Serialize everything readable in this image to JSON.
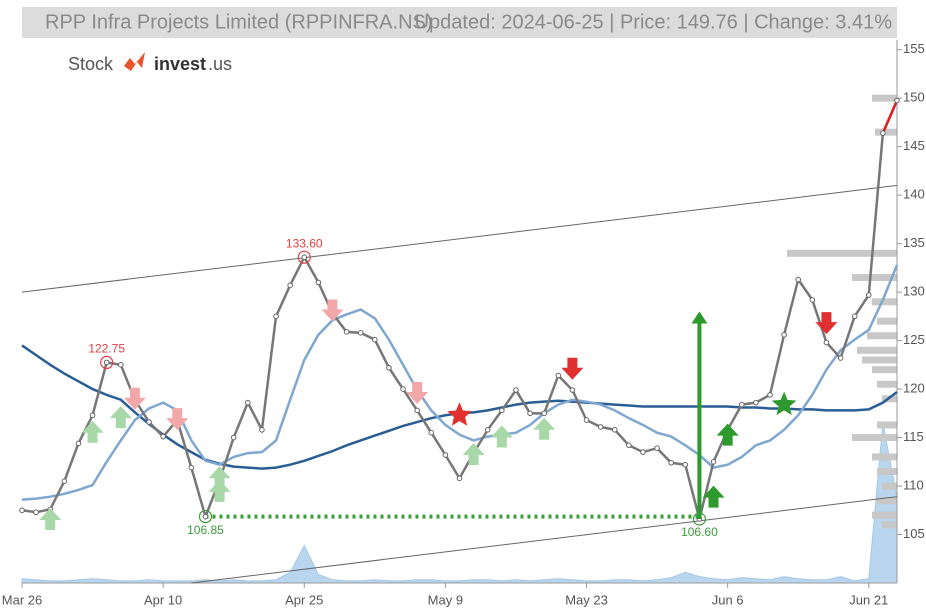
{
  "chart_data": {
    "type": "line",
    "title": "RPP Infra Projects Limited (RPPINFRA.NS)",
    "subtitle": "Updated: 2024-06-25 | Price: 149.76 | Change: 3.41%",
    "logo": [
      "Stock",
      "invest",
      ".us"
    ],
    "x": [
      0,
      1,
      2,
      3,
      4,
      5,
      6,
      7,
      8,
      9,
      10,
      11,
      12,
      13,
      14,
      15,
      16,
      17,
      18,
      19,
      20,
      21,
      22,
      23,
      24,
      25,
      26,
      27,
      28,
      29,
      30,
      31,
      32,
      33,
      34,
      35,
      36,
      37,
      38,
      39,
      40,
      41,
      42,
      43,
      44,
      45,
      46,
      47,
      48,
      49,
      50,
      51,
      52,
      53,
      54,
      55,
      56,
      57,
      58,
      59,
      60,
      61,
      62
    ],
    "xlim": [
      0,
      62
    ],
    "xticks": [
      {
        "value": 0,
        "label": "Mar 26"
      },
      {
        "value": 10,
        "label": "Apr 10"
      },
      {
        "value": 20,
        "label": "Apr 25"
      },
      {
        "value": 30,
        "label": "May 9"
      },
      {
        "value": 40,
        "label": "May 23"
      },
      {
        "value": 50,
        "label": "Jun 6"
      },
      {
        "value": 60,
        "label": "Jun 21"
      }
    ],
    "ylim": [
      100,
      156
    ],
    "yticks": [
      105,
      110,
      115,
      120,
      125,
      130,
      135,
      140,
      145,
      150,
      155
    ],
    "series": [
      {
        "color": "#777777",
        "values": [
          107.5,
          107.3,
          107.6,
          110.5,
          114.4,
          117.3,
          122.75,
          122.5,
          118.9,
          116.6,
          115.1,
          116.8,
          111.9,
          106.85,
          110.6,
          115.0,
          118.6,
          115.8,
          127.5,
          130.7,
          133.6,
          131.0,
          127.8,
          125.9,
          125.8,
          125.1,
          122.2,
          120.0,
          117.8,
          115.5,
          113.2,
          110.8,
          113.4,
          115.8,
          117.8,
          119.9,
          117.5,
          117.5,
          121.4,
          119.9,
          116.8,
          116.1,
          115.8,
          114.2,
          113.5,
          113.9,
          112.4,
          112.2,
          106.6,
          112.5,
          115.8,
          118.4,
          118.6,
          119.4,
          125.6,
          131.3,
          129.2,
          124.8,
          123.2,
          127.5,
          129.7,
          146.4,
          149.76
        ]
      },
      {
        "color": "#7fa7d0",
        "values": [
          108.6,
          108.7,
          108.9,
          109.2,
          109.6,
          110.1,
          112.5,
          114.7,
          116.8,
          118.0,
          118.6,
          117.8,
          114.7,
          112.6,
          112.2,
          113.0,
          113.4,
          113.5,
          114.7,
          118.9,
          123.0,
          125.6,
          127.1,
          127.7,
          128.2,
          127.3,
          125.1,
          122.5,
          119.9,
          117.8,
          116.3,
          115.3,
          114.7,
          115.1,
          115.3,
          115.5,
          116.3,
          117.5,
          118.4,
          118.9,
          118.7,
          118.4,
          117.8,
          117.0,
          116.3,
          115.5,
          115.1,
          114.2,
          113.2,
          111.9,
          112.2,
          113.0,
          114.2,
          114.7,
          115.8,
          117.3,
          119.4,
          122.0,
          124.0,
          125.1,
          126.1,
          129.2,
          132.8
        ]
      },
      {
        "color": "#2a5d94",
        "values": [
          124.5,
          123.5,
          122.5,
          121.6,
          120.8,
          120.0,
          119.4,
          118.9,
          117.6,
          116.4,
          115.3,
          114.3,
          113.5,
          112.7,
          112.3,
          112.0,
          111.9,
          111.8,
          111.9,
          112.2,
          112.6,
          113.1,
          113.6,
          114.2,
          114.7,
          115.2,
          115.7,
          116.2,
          116.6,
          117.0,
          117.3,
          117.5,
          117.6,
          117.8,
          118.1,
          118.4,
          118.6,
          118.7,
          118.8,
          118.7,
          118.6,
          118.5,
          118.4,
          118.3,
          118.2,
          118.2,
          118.2,
          118.2,
          118.2,
          118.2,
          118.2,
          118.1,
          118.1,
          118.0,
          118.0,
          117.9,
          117.9,
          117.8,
          117.8,
          117.8,
          117.9,
          118.6,
          119.7
        ]
      }
    ],
    "last_segment_color": "#e02020",
    "trend_lines": [
      {
        "x": [
          0,
          62
        ],
        "values": [
          130,
          141
        ]
      },
      {
        "x": [
          12,
          62
        ],
        "values": [
          100,
          108.9
        ]
      }
    ],
    "annotations": [
      {
        "x": 20,
        "value": 133.6,
        "label": "133.60",
        "color": "#e04040",
        "placement": "above"
      },
      {
        "x": 6,
        "value": 122.75,
        "label": "122.75",
        "color": "#e04040",
        "placement": "above"
      },
      {
        "x": 13,
        "value": 106.85,
        "label": "106.85",
        "color": "#3a9a3a",
        "placement": "below"
      },
      {
        "x": 48,
        "value": 106.6,
        "label": "106.60",
        "color": "#3a9a3a",
        "placement": "below"
      }
    ],
    "support": {
      "x": [
        13,
        48
      ],
      "value": 106.85,
      "color": "#3aa03a"
    },
    "signals": [
      {
        "x": 2,
        "value": 106.5,
        "shape": "up",
        "color": "#a8d8a8"
      },
      {
        "x": 5,
        "value": 115.5,
        "shape": "up",
        "color": "#a8d8a8"
      },
      {
        "x": 7,
        "value": 117,
        "shape": "up",
        "color": "#a8d8a8"
      },
      {
        "x": 14,
        "value": 110.8,
        "shape": "up",
        "color": "#a8d8a8"
      },
      {
        "x": 14,
        "value": 109.4,
        "shape": "up",
        "color": "#a8d8a8"
      },
      {
        "x": 32,
        "value": 113.2,
        "shape": "up",
        "color": "#a8d8a8"
      },
      {
        "x": 34,
        "value": 115,
        "shape": "up",
        "color": "#a8d8a8"
      },
      {
        "x": 37,
        "value": 115.8,
        "shape": "up",
        "color": "#a8d8a8"
      },
      {
        "x": 8,
        "value": 119.1,
        "shape": "down",
        "color": "#f2a8a8"
      },
      {
        "x": 11,
        "value": 117,
        "shape": "down",
        "color": "#f2a8a8"
      },
      {
        "x": 22,
        "value": 128.2,
        "shape": "down",
        "color": "#f2a8a8"
      },
      {
        "x": 28,
        "value": 119.7,
        "shape": "down",
        "color": "#f2a8a8"
      },
      {
        "x": 39,
        "value": 122.2,
        "shape": "down",
        "color": "#e03030"
      },
      {
        "x": 57,
        "value": 126.9,
        "shape": "down",
        "color": "#e03030"
      },
      {
        "x": 49,
        "value": 108.8,
        "shape": "up",
        "color": "#2e9a2e"
      },
      {
        "x": 50,
        "value": 115.2,
        "shape": "up",
        "color": "#2e9a2e"
      },
      {
        "x": 31,
        "value": 117.3,
        "shape": "star",
        "color": "#e03030"
      },
      {
        "x": 54,
        "value": 118.4,
        "shape": "star",
        "color": "#2e9a2e"
      },
      {
        "x": 48,
        "value": 128,
        "from": 106.6,
        "shape": "long",
        "color": "#2e9a2e"
      }
    ],
    "volume": [
      4,
      3,
      2,
      2,
      3,
      4,
      3,
      2,
      2,
      3,
      2,
      2,
      2,
      3,
      2,
      3,
      2,
      2,
      3,
      10,
      35,
      8,
      3,
      2,
      2,
      3,
      2,
      2,
      3,
      3,
      2,
      2,
      3,
      3,
      2,
      3,
      2,
      3,
      4,
      3,
      2,
      2,
      3,
      3,
      2,
      3,
      5,
      10,
      6,
      4,
      3,
      5,
      4,
      3,
      6,
      4,
      3,
      3,
      6,
      2,
      4,
      150,
      80
    ],
    "volume_color": "#a9cdea",
    "volume_profile": {
      "color": "#c8c8c8",
      "levels": [
        150,
        146.5,
        134,
        131.5,
        129,
        127,
        125.5,
        124,
        123,
        122,
        120.5,
        119,
        116.3,
        115,
        113,
        111.5,
        110,
        108.5,
        107,
        106
      ],
      "values": [
        25,
        22,
        110,
        45,
        25,
        20,
        30,
        40,
        35,
        25,
        20,
        15,
        20,
        45,
        25,
        20,
        15,
        20,
        25,
        15
      ]
    }
  }
}
